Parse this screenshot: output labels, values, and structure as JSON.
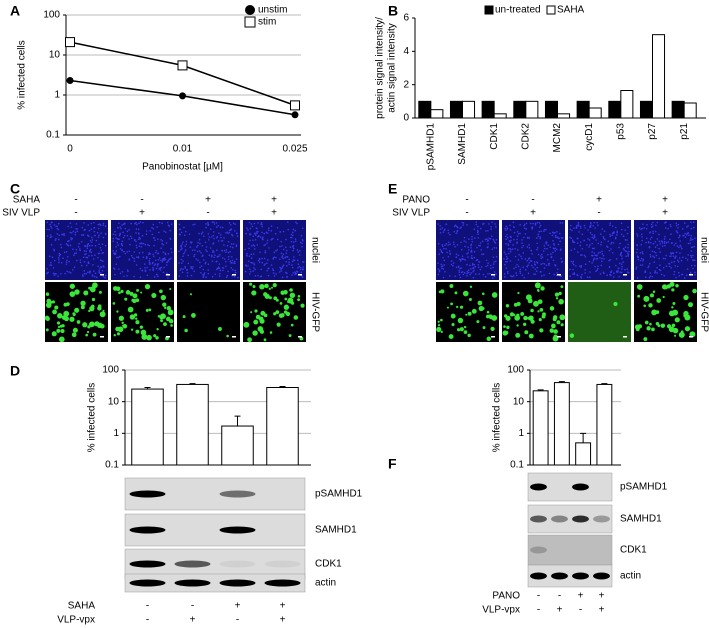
{
  "panels": {
    "labels": [
      "A",
      "B",
      "C",
      "D",
      "E",
      "F"
    ]
  },
  "chart_data": [
    {
      "type": "line",
      "log_scale": true,
      "grid": true,
      "legend": "upper right",
      "xlabel": "Panobinostat [µM]",
      "ylabel": "% infected cells",
      "categories": [
        "0",
        "0.01",
        "0.025"
      ],
      "series": [
        {
          "name": "unstim",
          "color": "#000000",
          "marker": "circle",
          "values": [
            2.3,
            0.95,
            0.32
          ]
        },
        {
          "name": "stim",
          "color": "#000000",
          "marker": "square",
          "values": [
            21,
            5.5,
            0.55
          ]
        }
      ],
      "ylim": [
        0.1,
        100
      ],
      "yticks": [
        0.1,
        1,
        10,
        100
      ]
    },
    {
      "type": "grouped_bar",
      "log_scale": false,
      "grid": false,
      "legend": "upper center",
      "ylabel": [
        "protein signal intensity/",
        "actin signal intensity"
      ],
      "categories": [
        "pSAMHD1",
        "SAMHD1",
        "CDK1",
        "CDK2",
        "MCM2",
        "cycD1",
        "p53",
        "p27",
        "p21"
      ],
      "series": [
        {
          "name": "un-treated",
          "color": "#000000",
          "values": [
            1,
            1,
            1,
            1,
            1,
            1,
            1,
            1,
            1
          ]
        },
        {
          "name": "SAHA",
          "color": "#ffffff",
          "values": [
            0.5,
            1,
            0.25,
            1,
            0.25,
            0.6,
            1.65,
            5,
            0.9
          ]
        }
      ],
      "ylim": [
        0,
        6
      ],
      "yticks": [
        0,
        2,
        4,
        6
      ]
    },
    {
      "type": "bar",
      "log_scale": true,
      "grid": true,
      "ylabel": "% infected cells",
      "color": "#ffffff",
      "values": [
        25,
        35,
        1.7,
        28
      ],
      "errors": [
        3,
        2,
        1.8,
        2
      ],
      "ylim": [
        0.1,
        100
      ],
      "yticks": [
        0.1,
        1,
        10,
        100
      ]
    },
    {
      "type": "bar",
      "log_scale": true,
      "grid": true,
      "ylabel": "% infected cells",
      "color": "#ffffff",
      "values": [
        22,
        40,
        0.5,
        35
      ],
      "errors": [
        1.5,
        3,
        0.5,
        2
      ],
      "ylim": [
        0.1,
        100
      ],
      "yticks": [
        0.1,
        1,
        10,
        100
      ]
    }
  ],
  "microscopy": [
    {
      "conditions": [
        {
          "name": "SAHA",
          "signs": [
            "-",
            "-",
            "+",
            "+"
          ]
        },
        {
          "name": "SIV VLP",
          "signs": [
            "-",
            "+",
            "-",
            "+"
          ]
        }
      ],
      "channels": [
        "nuclei",
        "HIV-GFP"
      ]
    },
    {
      "conditions": [
        {
          "name": "PANO",
          "signs": [
            "-",
            "-",
            "+",
            "+"
          ]
        },
        {
          "name": "SIV VLP",
          "signs": [
            "-",
            "+",
            "-",
            "+"
          ]
        }
      ],
      "channels": [
        "nuclei",
        "HIV-GFP"
      ]
    }
  ],
  "blots": [
    {
      "proteins": [
        "pSAMHD1",
        "SAMHD1",
        "CDK1",
        "actin"
      ],
      "conditions": [
        {
          "name": "SAHA",
          "signs": [
            "-",
            "-",
            "+",
            "+"
          ]
        },
        {
          "name": "VLP-vpx",
          "signs": [
            "-",
            "+",
            "-",
            "+"
          ]
        }
      ]
    },
    {
      "proteins": [
        "pSAMHD1",
        "SAMHD1",
        "CDK1",
        "actin"
      ],
      "conditions": [
        {
          "name": "PANO",
          "signs": [
            "-",
            "-",
            "+",
            "+"
          ]
        },
        {
          "name": "VLP-vpx",
          "signs": [
            "-",
            "+",
            "-",
            "+"
          ]
        }
      ]
    }
  ]
}
